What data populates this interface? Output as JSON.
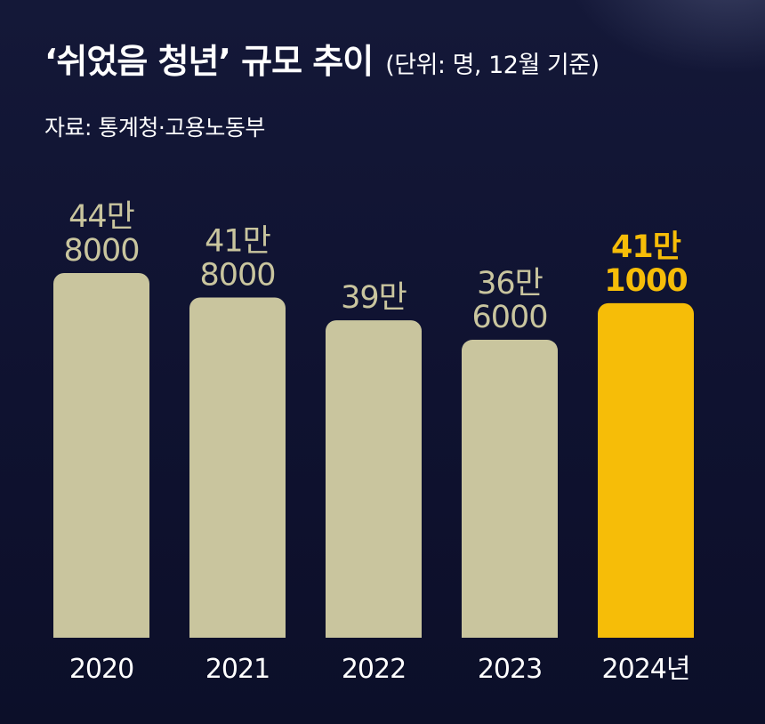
{
  "header": {
    "title": "‘쉬었음 청년’ 규모 추이",
    "unit_note": "(단위: 명, 12월 기준)",
    "source": "자료: 통계청·고용노동부"
  },
  "colors": {
    "background": "#0f1230",
    "bar_default": "#c9c59e",
    "bar_highlight": "#f6bd08",
    "label_default": "#c9c59e",
    "label_highlight": "#f6bd08",
    "axis_text": "#ffffff"
  },
  "chart_data": {
    "type": "bar",
    "title": "‘쉬었음 청년’ 규모 추이",
    "subtitle": "(단위: 명, 12월 기준)",
    "source": "자료: 통계청·고용노동부",
    "categories": [
      "2020",
      "2021",
      "2022",
      "2023",
      "2024년"
    ],
    "values": [
      448000,
      418000,
      390000,
      366000,
      411000
    ],
    "data_labels": [
      [
        "44만",
        "8000"
      ],
      [
        "41만",
        "8000"
      ],
      [
        "39만"
      ],
      [
        "36만",
        "6000"
      ],
      [
        "41만",
        "1000"
      ]
    ],
    "highlight_index": 4,
    "ylim": [
      0,
      448000
    ],
    "grid": false,
    "legend": "none",
    "xlabel": "",
    "ylabel": ""
  }
}
